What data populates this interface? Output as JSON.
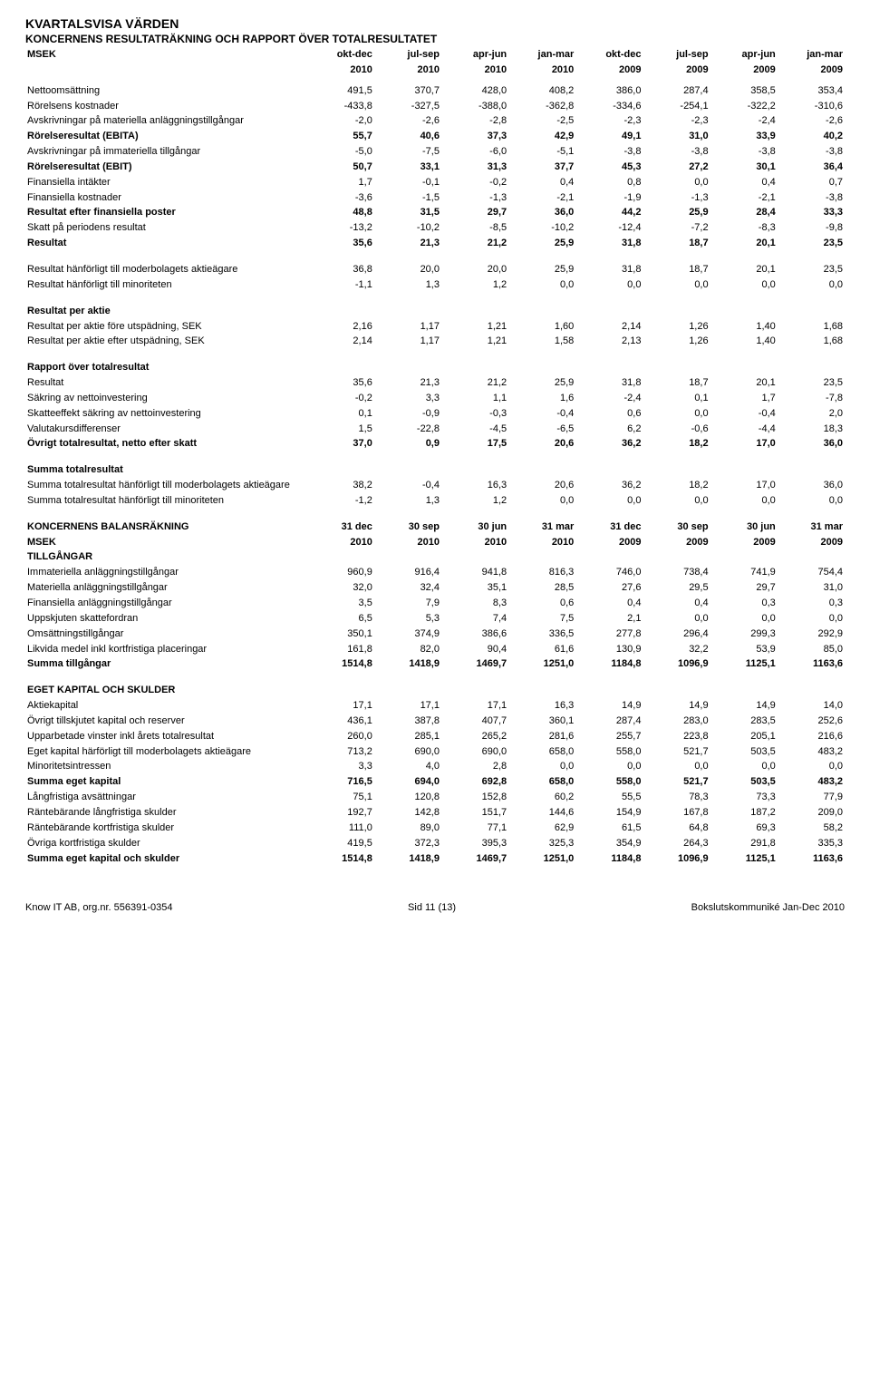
{
  "page_title": "KVARTALSVISA VÄRDEN",
  "income_title": "KONCERNENS RESULTATRÄKNING OCH RAPPORT ÖVER TOTALRESULTATET",
  "unit_label": "MSEK",
  "income_periods_top": [
    "okt-dec",
    "jul-sep",
    "apr-jun",
    "jan-mar",
    "okt-dec",
    "jul-sep",
    "apr-jun",
    "jan-mar"
  ],
  "income_periods_year": [
    "2010",
    "2010",
    "2010",
    "2010",
    "2009",
    "2009",
    "2009",
    "2009"
  ],
  "income_rows": [
    {
      "label": "Nettoomsättning",
      "v": [
        "491,5",
        "370,7",
        "428,0",
        "408,2",
        "386,0",
        "287,4",
        "358,5",
        "353,4"
      ]
    },
    {
      "label": "Rörelsens kostnader",
      "v": [
        "-433,8",
        "-327,5",
        "-388,0",
        "-362,8",
        "-334,6",
        "-254,1",
        "-322,2",
        "-310,6"
      ]
    },
    {
      "label": "Avskrivningar på materiella anläggningstillgångar",
      "v": [
        "-2,0",
        "-2,6",
        "-2,8",
        "-2,5",
        "-2,3",
        "-2,3",
        "-2,4",
        "-2,6"
      ]
    },
    {
      "label": "Rörelseresultat (EBITA)",
      "bold": true,
      "v": [
        "55,7",
        "40,6",
        "37,3",
        "42,9",
        "49,1",
        "31,0",
        "33,9",
        "40,2"
      ]
    },
    {
      "label": "Avskrivningar på immateriella tillgångar",
      "v": [
        "-5,0",
        "-7,5",
        "-6,0",
        "-5,1",
        "-3,8",
        "-3,8",
        "-3,8",
        "-3,8"
      ]
    },
    {
      "label": "Rörelseresultat (EBIT)",
      "bold": true,
      "v": [
        "50,7",
        "33,1",
        "31,3",
        "37,7",
        "45,3",
        "27,2",
        "30,1",
        "36,4"
      ]
    },
    {
      "label": "Finansiella intäkter",
      "v": [
        "1,7",
        "-0,1",
        "-0,2",
        "0,4",
        "0,8",
        "0,0",
        "0,4",
        "0,7"
      ]
    },
    {
      "label": "Finansiella kostnader",
      "v": [
        "-3,6",
        "-1,5",
        "-1,3",
        "-2,1",
        "-1,9",
        "-1,3",
        "-2,1",
        "-3,8"
      ]
    },
    {
      "label": "Resultat efter finansiella poster",
      "bold": true,
      "v": [
        "48,8",
        "31,5",
        "29,7",
        "36,0",
        "44,2",
        "25,9",
        "28,4",
        "33,3"
      ]
    },
    {
      "label": "Skatt på periodens resultat",
      "v": [
        "-13,2",
        "-10,2",
        "-8,5",
        "-10,2",
        "-12,4",
        "-7,2",
        "-8,3",
        "-9,8"
      ]
    },
    {
      "label": "Resultat",
      "bold": true,
      "v": [
        "35,6",
        "21,3",
        "21,2",
        "25,9",
        "31,8",
        "18,7",
        "20,1",
        "23,5"
      ]
    }
  ],
  "attrib_rows": [
    {
      "label": "Resultat hänförligt till moderbolagets aktieägare",
      "v": [
        "36,8",
        "20,0",
        "20,0",
        "25,9",
        "31,8",
        "18,7",
        "20,1",
        "23,5"
      ]
    },
    {
      "label": "Resultat hänförligt till minoriteten",
      "v": [
        "-1,1",
        "1,3",
        "1,2",
        "0,0",
        "0,0",
        "0,0",
        "0,0",
        "0,0"
      ]
    }
  ],
  "per_share_header": "Resultat per aktie",
  "per_share_rows": [
    {
      "label": "Resultat per aktie före utspädning, SEK",
      "v": [
        "2,16",
        "1,17",
        "1,21",
        "1,60",
        "2,14",
        "1,26",
        "1,40",
        "1,68"
      ]
    },
    {
      "label": "Resultat per aktie efter utspädning, SEK",
      "v": [
        "2,14",
        "1,17",
        "1,21",
        "1,58",
        "2,13",
        "1,26",
        "1,40",
        "1,68"
      ]
    }
  ],
  "comp_income_header": "Rapport över totalresultat",
  "comp_income_rows": [
    {
      "label": "Resultat",
      "v": [
        "35,6",
        "21,3",
        "21,2",
        "25,9",
        "31,8",
        "18,7",
        "20,1",
        "23,5"
      ]
    },
    {
      "label": "Säkring av nettoinvestering",
      "v": [
        "-0,2",
        "3,3",
        "1,1",
        "1,6",
        "-2,4",
        "0,1",
        "1,7",
        "-7,8"
      ]
    },
    {
      "label": "Skatteeffekt säkring av nettoinvestering",
      "v": [
        "0,1",
        "-0,9",
        "-0,3",
        "-0,4",
        "0,6",
        "0,0",
        "-0,4",
        "2,0"
      ]
    },
    {
      "label": "Valutakursdifferenser",
      "v": [
        "1,5",
        "-22,8",
        "-4,5",
        "-6,5",
        "6,2",
        "-0,6",
        "-4,4",
        "18,3"
      ]
    },
    {
      "label": "Övrigt totalresultat, netto efter skatt",
      "bold": true,
      "v": [
        "37,0",
        "0,9",
        "17,5",
        "20,6",
        "36,2",
        "18,2",
        "17,0",
        "36,0"
      ]
    }
  ],
  "total_comp_header": "Summa totalresultat",
  "total_comp_rows": [
    {
      "label": "Summa totalresultat hänförligt till moderbolagets aktieägare",
      "v": [
        "38,2",
        "-0,4",
        "16,3",
        "20,6",
        "36,2",
        "18,2",
        "17,0",
        "36,0"
      ]
    },
    {
      "label": "Summa totalresultat hänförligt till minoriteten",
      "v": [
        "-1,2",
        "1,3",
        "1,2",
        "0,0",
        "0,0",
        "0,0",
        "0,0",
        "0,0"
      ]
    }
  ],
  "balance_title": "KONCERNENS BALANSRÄKNING",
  "balance_dates_top": [
    "31 dec",
    "30 sep",
    "30 jun",
    "31 mar",
    "31 dec",
    "30 sep",
    "30 jun",
    "31 mar"
  ],
  "balance_year": [
    "2010",
    "2010",
    "2010",
    "2010",
    "2009",
    "2009",
    "2009",
    "2009"
  ],
  "assets_header": "TILLGÅNGAR",
  "assets_rows": [
    {
      "label": "Immateriella anläggningstillgångar",
      "v": [
        "960,9",
        "916,4",
        "941,8",
        "816,3",
        "746,0",
        "738,4",
        "741,9",
        "754,4"
      ]
    },
    {
      "label": "Materiella anläggningstillgångar",
      "v": [
        "32,0",
        "32,4",
        "35,1",
        "28,5",
        "27,6",
        "29,5",
        "29,7",
        "31,0"
      ]
    },
    {
      "label": "Finansiella anläggningstillgångar",
      "v": [
        "3,5",
        "7,9",
        "8,3",
        "0,6",
        "0,4",
        "0,4",
        "0,3",
        "0,3"
      ]
    },
    {
      "label": "Uppskjuten skattefordran",
      "v": [
        "6,5",
        "5,3",
        "7,4",
        "7,5",
        "2,1",
        "0,0",
        "0,0",
        "0,0"
      ]
    },
    {
      "label": "Omsättningstillgångar",
      "v": [
        "350,1",
        "374,9",
        "386,6",
        "336,5",
        "277,8",
        "296,4",
        "299,3",
        "292,9"
      ]
    },
    {
      "label": "Likvida medel inkl kortfristiga placeringar",
      "v": [
        "161,8",
        "82,0",
        "90,4",
        "61,6",
        "130,9",
        "32,2",
        "53,9",
        "85,0"
      ]
    },
    {
      "label": "Summa tillgångar",
      "bold": true,
      "v": [
        "1514,8",
        "1418,9",
        "1469,7",
        "1251,0",
        "1184,8",
        "1096,9",
        "1125,1",
        "1163,6"
      ]
    }
  ],
  "equity_header": "EGET KAPITAL OCH SKULDER",
  "equity_rows": [
    {
      "label": "Aktiekapital",
      "v": [
        "17,1",
        "17,1",
        "17,1",
        "16,3",
        "14,9",
        "14,9",
        "14,9",
        "14,0"
      ]
    },
    {
      "label": "Övrigt tillskjutet kapital och reserver",
      "v": [
        "436,1",
        "387,8",
        "407,7",
        "360,1",
        "287,4",
        "283,0",
        "283,5",
        "252,6"
      ]
    },
    {
      "label": "Upparbetade vinster inkl årets totalresultat",
      "v": [
        "260,0",
        "285,1",
        "265,2",
        "281,6",
        "255,7",
        "223,8",
        "205,1",
        "216,6"
      ]
    },
    {
      "label": "Eget kapital härförligt till moderbolagets aktieägare",
      "v": [
        "713,2",
        "690,0",
        "690,0",
        "658,0",
        "558,0",
        "521,7",
        "503,5",
        "483,2"
      ]
    },
    {
      "label": "Minoritetsintressen",
      "v": [
        "3,3",
        "4,0",
        "2,8",
        "0,0",
        "0,0",
        "0,0",
        "0,0",
        "0,0"
      ]
    },
    {
      "label": "Summa eget kapital",
      "bold": true,
      "v": [
        "716,5",
        "694,0",
        "692,8",
        "658,0",
        "558,0",
        "521,7",
        "503,5",
        "483,2"
      ]
    },
    {
      "label": "Långfristiga avsättningar",
      "v": [
        "75,1",
        "120,8",
        "152,8",
        "60,2",
        "55,5",
        "78,3",
        "73,3",
        "77,9"
      ]
    },
    {
      "label": "Räntebärande långfristiga skulder",
      "v": [
        "192,7",
        "142,8",
        "151,7",
        "144,6",
        "154,9",
        "167,8",
        "187,2",
        "209,0"
      ]
    },
    {
      "label": "Räntebärande kortfristiga skulder",
      "v": [
        "111,0",
        "89,0",
        "77,1",
        "62,9",
        "61,5",
        "64,8",
        "69,3",
        "58,2"
      ]
    },
    {
      "label": "Övriga kortfristiga skulder",
      "v": [
        "419,5",
        "372,3",
        "395,3",
        "325,3",
        "354,9",
        "264,3",
        "291,8",
        "335,3"
      ]
    },
    {
      "label": "Summa eget kapital och skulder",
      "bold": true,
      "v": [
        "1514,8",
        "1418,9",
        "1469,7",
        "1251,0",
        "1184,8",
        "1096,9",
        "1125,1",
        "1163,6"
      ]
    }
  ],
  "footer_left": "Know IT AB, org.nr. 556391-0354",
  "footer_mid": "Sid 11 (13)",
  "footer_right": "Bokslutskommuniké Jan-Dec 2010"
}
